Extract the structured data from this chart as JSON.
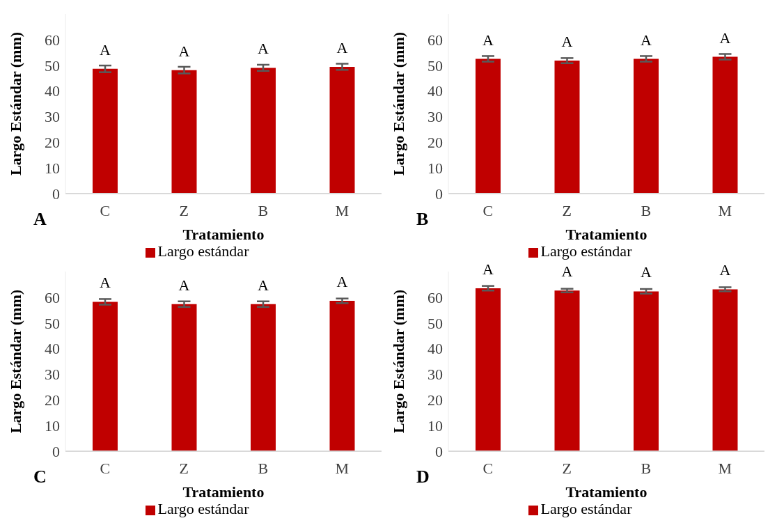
{
  "chart_data": [
    {
      "type": "bar",
      "categories": [
        "C",
        "Z",
        "B",
        "M"
      ],
      "xlabel": "Tratamiento",
      "ylabel": "Largo Estándar (mm)",
      "series": [
        {
          "name": "Largo estándar",
          "color": "#c00000",
          "values": [
            48.6,
            48.1,
            49.0,
            49.4
          ],
          "errors": [
            1.3,
            1.3,
            1.2,
            1.2
          ]
        }
      ],
      "ylim": [
        0,
        70
      ],
      "yticks": [
        0,
        10,
        20,
        30,
        40,
        50,
        60
      ],
      "grid": false,
      "legend": "bottom",
      "annotations": [
        "A",
        {
          "text": "A",
          "x": "C",
          "y": 48.6
        },
        {
          "text": "A",
          "x": "Z",
          "y": 48.1
        },
        {
          "text": "A",
          "x": "B",
          "y": 49.0
        },
        {
          "text": "A",
          "x": "M",
          "y": 49.4
        }
      ]
    },
    {
      "type": "bar",
      "categories": [
        "C",
        "Z",
        "B",
        "M"
      ],
      "xlabel": "Tratamiento",
      "ylabel": "Largo Estándar (mm)",
      "series": [
        {
          "name": "Largo estándar",
          "color": "#c00000",
          "values": [
            52.5,
            51.8,
            52.5,
            53.3
          ],
          "errors": [
            1.1,
            1.0,
            1.1,
            1.1
          ]
        }
      ],
      "ylim": [
        0,
        70
      ],
      "yticks": [
        0,
        10,
        20,
        30,
        40,
        50,
        60
      ],
      "grid": false,
      "legend": "bottom",
      "annotations": [
        "B",
        {
          "text": "A",
          "x": "C",
          "y": 52.5
        },
        {
          "text": "A",
          "x": "Z",
          "y": 51.8
        },
        {
          "text": "A",
          "x": "B",
          "y": 52.5
        },
        {
          "text": "A",
          "x": "M",
          "y": 53.3
        }
      ]
    },
    {
      "type": "bar",
      "categories": [
        "C",
        "Z",
        "B",
        "M"
      ],
      "xlabel": "Tratamiento",
      "ylabel": "Largo Estándar (mm)",
      "series": [
        {
          "name": "Largo estándar",
          "color": "#c00000",
          "values": [
            58.2,
            57.3,
            57.3,
            58.6
          ],
          "errors": [
            1.1,
            1.1,
            1.1,
            0.9
          ]
        }
      ],
      "ylim": [
        0,
        70
      ],
      "yticks": [
        0,
        10,
        20,
        30,
        40,
        50,
        60
      ],
      "grid": false,
      "legend": "bottom",
      "annotations": [
        "C",
        {
          "text": "A",
          "x": "C",
          "y": 58.2
        },
        {
          "text": "A",
          "x": "Z",
          "y": 57.3
        },
        {
          "text": "A",
          "x": "B",
          "y": 57.3
        },
        {
          "text": "A",
          "x": "M",
          "y": 58.6
        }
      ]
    },
    {
      "type": "bar",
      "categories": [
        "C",
        "Z",
        "B",
        "M"
      ],
      "xlabel": "Tratamiento",
      "ylabel": "Largo Estándar (mm)",
      "series": [
        {
          "name": "Largo estándar",
          "color": "#c00000",
          "values": [
            63.5,
            62.6,
            62.3,
            63.1
          ],
          "errors": [
            0.9,
            0.7,
            0.9,
            0.8
          ]
        }
      ],
      "ylim": [
        0,
        70
      ],
      "yticks": [
        0,
        10,
        20,
        30,
        40,
        50,
        60
      ],
      "grid": false,
      "legend": "bottom",
      "annotations": [
        "D",
        {
          "text": "A",
          "x": "C",
          "y": 63.5
        },
        {
          "text": "A",
          "x": "Z",
          "y": 62.6
        },
        {
          "text": "A",
          "x": "B",
          "y": 62.3
        },
        {
          "text": "A",
          "x": "M",
          "y": 63.1
        }
      ]
    }
  ]
}
